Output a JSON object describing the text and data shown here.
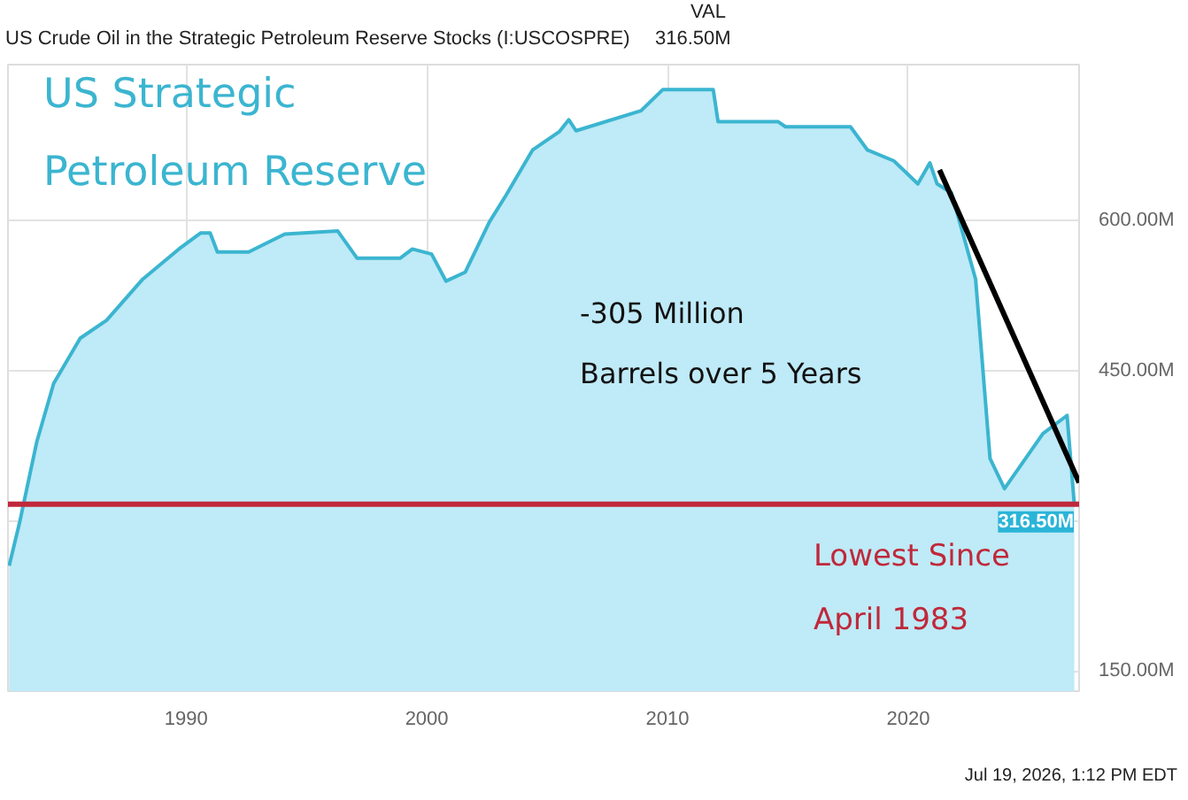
{
  "chart_data": {
    "type": "area",
    "title": "US Strategic\nPetroleum Reserve",
    "subtitle": "US Crude Oil in the Strategic Petroleum Reserve Stocks (I:USCOSPRE)",
    "x": [
      1982.65,
      1983.1,
      1983.8,
      1984.5,
      1985.6,
      1986.7,
      1988.2,
      1989.7,
      1990.6,
      1991.0,
      1991.3,
      1992.6,
      1994.1,
      1996.3,
      1997.1,
      1998.9,
      1999.4,
      2000.2,
      2000.8,
      2001.6,
      2002.6,
      2003.3,
      2004.4,
      2005.5,
      2005.9,
      2006.2,
      2008.9,
      2009.8,
      2011.9,
      2012.1,
      2014.6,
      2014.9,
      2017.6,
      2018.3,
      2019.4,
      2020.4,
      2020.9,
      2021.2,
      2021.8,
      2022.8,
      2023.4,
      2024.0,
      2025.6,
      2026.6,
      2026.9
    ],
    "series": [
      {
        "color": "#3bb5d0",
        "values": [
          255,
          300,
          379,
          437,
          482,
          500,
          541,
          571,
          587,
          587,
          568,
          568,
          586,
          589,
          562,
          562,
          571,
          566,
          539,
          548,
          598,
          625,
          670,
          688,
          700,
          689,
          709,
          730,
          730,
          698,
          698,
          693,
          693,
          670,
          659,
          636,
          657,
          636,
          627,
          541,
          362,
          332,
          387,
          405,
          316.5
        ]
      },
      {
        "type": "line",
        "color": "#000000",
        "x": [
          2021.3,
          2027.1
        ],
        "values": [
          650,
          338
        ]
      }
    ],
    "xlim": [
      1982.6,
      2027.1
    ],
    "xticks": [
      1990,
      2000,
      2010,
      2020
    ],
    "ylim": [
      130,
      755
    ],
    "yticks": [
      {
        "value": 150,
        "label": "150.00M"
      },
      {
        "value": 300,
        "label": null
      },
      {
        "value": 450,
        "label": "450.00M"
      },
      {
        "value": 600,
        "label": "600.00M"
      }
    ],
    "grid": true,
    "ref_lines": [
      {
        "axis": "y",
        "value": 316.5,
        "label": "316.50M",
        "color": "#c0283a"
      }
    ],
    "annotations": [
      "VAL",
      "316.50M",
      "-305 Million\nBarrels over 5 Years",
      "Lowest Since\nApril 1983",
      "Jul 19, 2026, 1:12 PM EDT"
    ]
  }
}
